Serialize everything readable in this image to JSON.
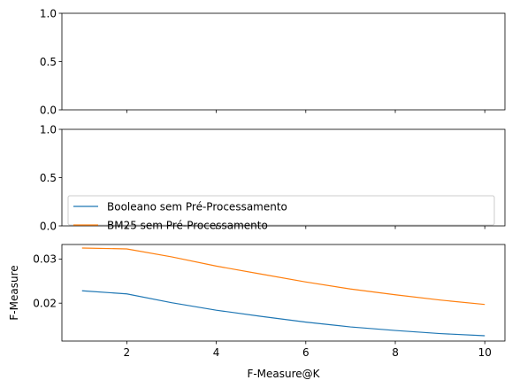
{
  "chart_data": [
    {
      "type": "line",
      "ylim": [
        0,
        1
      ],
      "yticks": [
        "0.0",
        "0.5",
        "1.0"
      ],
      "series": [],
      "xtick_labels_visible": false
    },
    {
      "type": "line",
      "ylim": [
        0,
        1
      ],
      "yticks": [
        "0.0",
        "0.5",
        "1.0"
      ],
      "series": [],
      "xtick_labels_visible": false,
      "legend": {
        "placement": "lower-left",
        "entries": [
          "Booleano sem Pré-Processamento",
          "BM25 sem Pré-Processamento"
        ]
      }
    },
    {
      "type": "line",
      "xlabel": "F-Measure@K",
      "ylabel": "F-Measure",
      "xlim": [
        0.55,
        10.45
      ],
      "ylim": [
        0.0114,
        0.0333
      ],
      "xticks": [
        2,
        4,
        6,
        8,
        10
      ],
      "yticks": [
        0.02,
        0.03
      ],
      "x": [
        1,
        2,
        3,
        4,
        5,
        6,
        7,
        8,
        9,
        10
      ],
      "series": [
        {
          "name": "Booleano sem Pré-Processamento",
          "color": "#1f77b4",
          "values": [
            0.0228,
            0.0221,
            0.0201,
            0.0184,
            0.017,
            0.0157,
            0.0146,
            0.0138,
            0.0131,
            0.0126
          ]
        },
        {
          "name": "BM25 sem Pré-Processamento",
          "color": "#ff7f0e",
          "values": [
            0.0325,
            0.0323,
            0.0305,
            0.0284,
            0.0266,
            0.0248,
            0.0232,
            0.0219,
            0.0207,
            0.0197
          ]
        }
      ]
    }
  ]
}
